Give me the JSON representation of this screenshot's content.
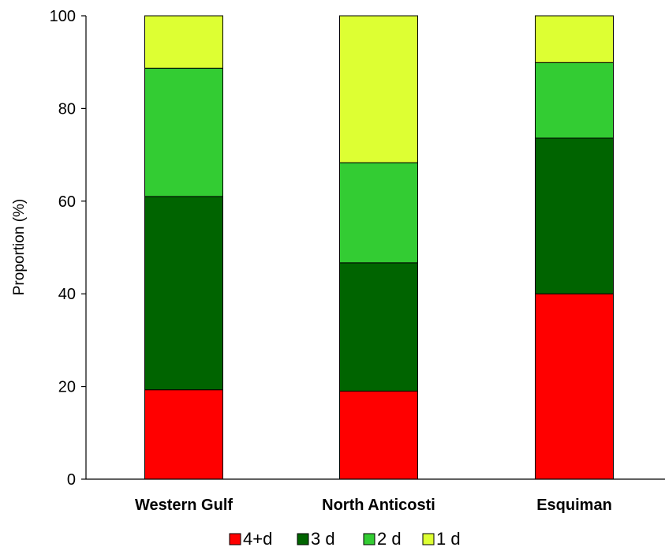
{
  "chart_data": {
    "type": "bar",
    "stacked": true,
    "categories": [
      "Western Gulf",
      "North Anticosti",
      "Esquiman"
    ],
    "series": [
      {
        "name": "4+d",
        "color": "#ff0000",
        "values": [
          19.3,
          19.0,
          40.0
        ]
      },
      {
        "name": "3 d",
        "color": "#006400",
        "values": [
          41.7,
          27.7,
          33.6
        ]
      },
      {
        "name": "2 d",
        "color": "#33cc33",
        "values": [
          27.7,
          21.6,
          16.3
        ]
      },
      {
        "name": "1 d",
        "color": "#ddff33",
        "values": [
          11.3,
          31.7,
          10.1
        ]
      }
    ],
    "ylabel": "Proportion (%)",
    "xlabel": "",
    "ylim": [
      0,
      100
    ],
    "yticks": [
      0,
      20,
      40,
      60,
      80,
      100
    ],
    "grid": false,
    "legend_position": "bottom"
  }
}
